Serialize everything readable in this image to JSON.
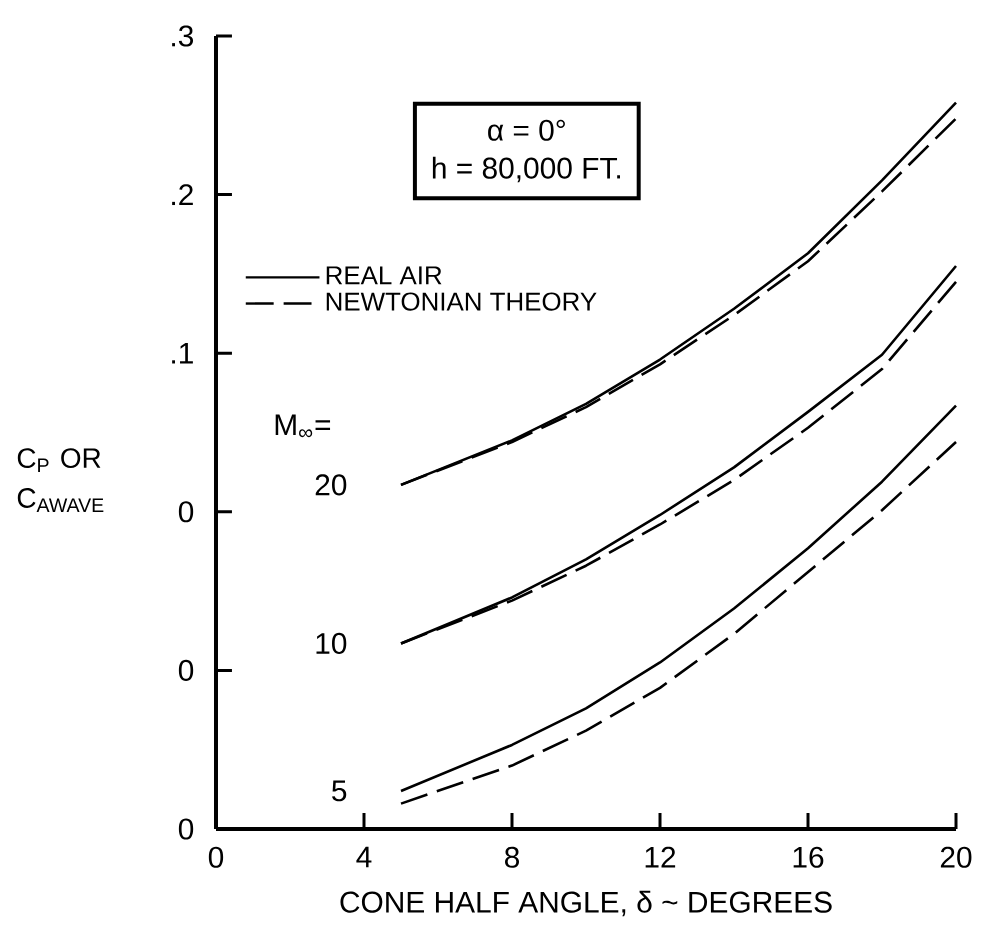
{
  "chart_data": {
    "type": "line",
    "xlabel": "CONE HALF ANGLE, δ ~ DEGREES",
    "ylabel": "C$_{P}$ OR C$_{AWAVE}$",
    "x": [
      5,
      8,
      10,
      12,
      14,
      16,
      18,
      20
    ],
    "xlim": [
      0,
      20
    ],
    "xticks": [
      0,
      4,
      8,
      12,
      16,
      20
    ],
    "ylim": [
      -0.2,
      0.3
    ],
    "yticks": [
      {
        "value": -0.2,
        "label": "0"
      },
      {
        "value": -0.1,
        "label": "0"
      },
      {
        "value": 0,
        "label": "0"
      },
      {
        "value": 0.1,
        "label": ".1"
      },
      {
        "value": 0.2,
        "label": ".2"
      },
      {
        "value": 0.3,
        "label": ".3"
      }
    ],
    "grid": false,
    "legend": "top left",
    "series": [
      {
        "name": "REAL AIR",
        "color": "#000000",
        "line_style": "solid",
        "values": [
          0.017,
          0.045,
          0.068,
          0.096,
          0.128,
          0.163,
          0.209,
          0.258
        ]
      },
      {
        "name": "NEWTONIAN THEORY",
        "color": "#000000",
        "line_style": "dashed",
        "values": [
          0.017,
          0.044,
          0.066,
          0.093,
          0.124,
          0.158,
          0.202,
          0.248
        ]
      },
      {
        "color": "#000000",
        "line_style": "solid",
        "values": [
          -0.083,
          -0.054,
          -0.03,
          -0.002,
          0.028,
          0.063,
          0.099,
          0.155
        ]
      },
      {
        "color": "#000000",
        "line_style": "dashed",
        "values": [
          -0.083,
          -0.056,
          -0.034,
          -0.008,
          0.02,
          0.053,
          0.09,
          0.145
        ]
      },
      {
        "color": "#000000",
        "line_style": "solid",
        "values": [
          -0.176,
          -0.147,
          -0.124,
          -0.095,
          -0.061,
          -0.023,
          0.019,
          0.067
        ]
      },
      {
        "color": "#000000",
        "line_style": "dashed",
        "values": [
          -0.184,
          -0.16,
          -0.138,
          -0.111,
          -0.077,
          -0.038,
          0.001,
          0.044
        ]
      }
    ],
    "annotations": [
      "α = 0°",
      "h = 80,000 FT.",
      "M$_{∞}$=",
      "20",
      "10",
      "5"
    ]
  }
}
